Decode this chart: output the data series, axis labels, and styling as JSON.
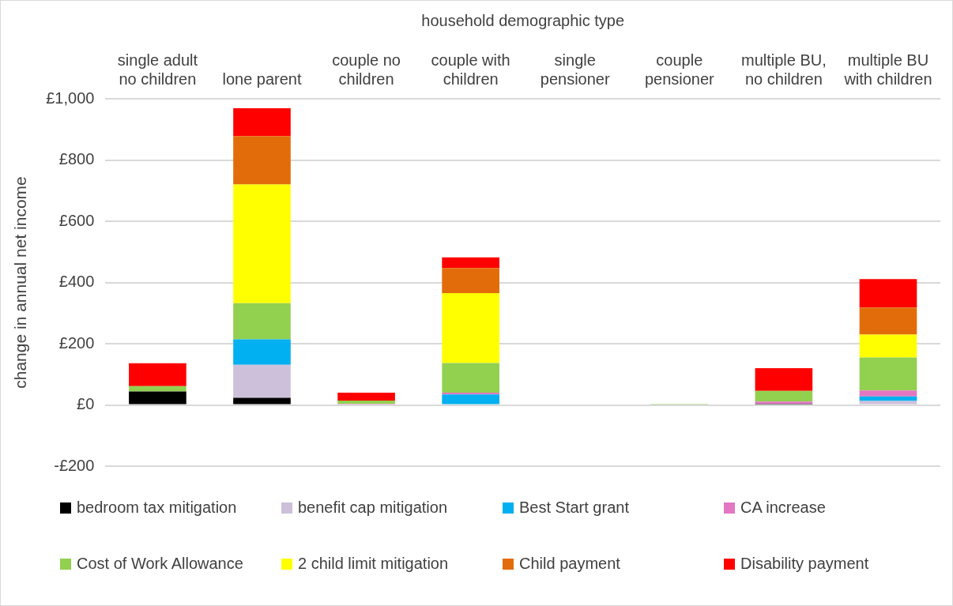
{
  "chart_data": {
    "type": "bar",
    "stacked": true,
    "xlabel": "household demographic type",
    "ylabel": "change in annual net income",
    "categories": [
      "single adult no children",
      "lone parent",
      "couple no children",
      "couple with children",
      "single pensioner",
      "couple pensioner",
      "multiple BU, no children",
      "multiple BU with children"
    ],
    "ylim": [
      -200,
      1000
    ],
    "yticks": [
      {
        "value": -200,
        "label": "-£200"
      },
      {
        "value": 0,
        "label": "£0"
      },
      {
        "value": 200,
        "label": "£200"
      },
      {
        "value": 400,
        "label": "£400"
      },
      {
        "value": 600,
        "label": "£600"
      },
      {
        "value": 800,
        "label": "£800"
      },
      {
        "value": 1000,
        "label": "£1,000"
      }
    ],
    "grid": "y",
    "legend": "bottom",
    "series": [
      {
        "name": "bedroom tax mitigation",
        "color": "#000000",
        "values": [
          44,
          23,
          null,
          0,
          0,
          0,
          4,
          0
        ]
      },
      {
        "name": "benefit cap mitigation",
        "color": "#ccc0da",
        "values": [
          0,
          108,
          0,
          0,
          0,
          0,
          0,
          13
        ]
      },
      {
        "name": "Best Start grant",
        "color": "#00b0f0",
        "values": [
          0,
          83,
          0,
          34,
          0,
          0,
          0,
          15
        ]
      },
      {
        "name": "CA increase",
        "color": "#e377c2",
        "values": [
          null,
          null,
          4,
          6,
          0,
          0,
          7,
          19
        ]
      },
      {
        "name": "Cost of Work Allowance",
        "color": "#92d050",
        "values": [
          17,
          118,
          10,
          97,
          null,
          4,
          35,
          108
        ]
      },
      {
        "name": "2 child limit mitigation",
        "color": "#ffff00",
        "values": [
          0,
          388,
          0,
          228,
          0,
          0,
          0,
          75
        ]
      },
      {
        "name": "Child payment",
        "color": "#e36c0a",
        "values": [
          0,
          158,
          0,
          82,
          0,
          0,
          0,
          88
        ]
      },
      {
        "name": "Disability payment",
        "color": "#ff0000",
        "values": [
          75,
          91,
          26,
          35,
          0,
          0,
          74,
          93
        ]
      }
    ]
  }
}
